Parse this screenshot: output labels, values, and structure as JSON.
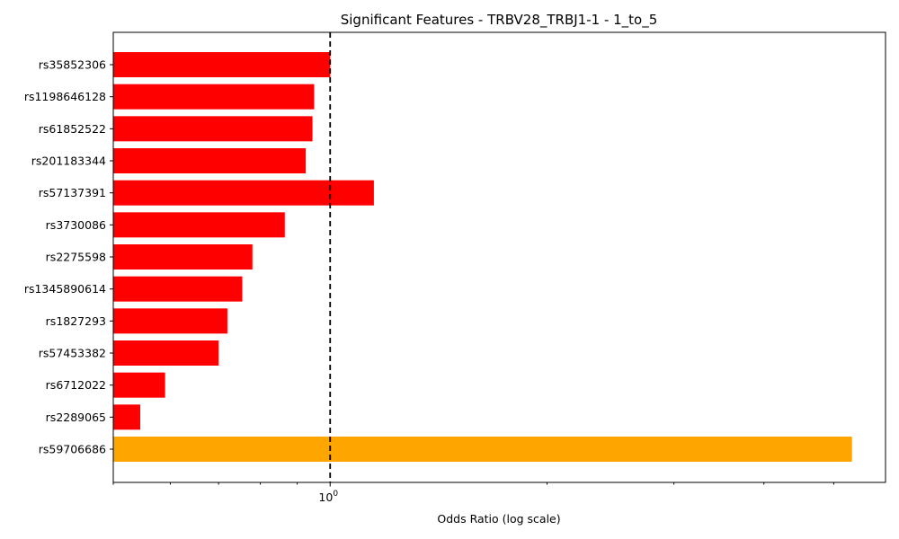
{
  "chart_data": {
    "type": "bar",
    "orientation": "horizontal",
    "title": "Significant Features - TRBV28_TRBJ1-1 - 1_to_5",
    "xlabel": "Odds Ratio (log scale)",
    "ylabel": "",
    "xscale": "log",
    "xlim": [
      0.5,
      5.9
    ],
    "grid": false,
    "reference_line": {
      "x": 1,
      "style": "dashed",
      "color": "#000000"
    },
    "x_tick_labels": [
      {
        "value": 1,
        "base": "10",
        "exponent": "0"
      }
    ],
    "categories": [
      "rs35852306",
      "rs1198646128",
      "rs61852522",
      "rs201183344",
      "rs57137391",
      "rs3730086",
      "rs2275598",
      "rs1345890614",
      "rs1827293",
      "rs57453382",
      "rs6712022",
      "rs2289065",
      "rs59706686"
    ],
    "values": [
      1.0,
      0.95,
      0.945,
      0.925,
      1.15,
      0.865,
      0.78,
      0.755,
      0.72,
      0.7,
      0.59,
      0.545,
      5.3
    ],
    "colors": [
      "#ff0000",
      "#ff0000",
      "#ff0000",
      "#ff0000",
      "#ff0000",
      "#ff0000",
      "#ff0000",
      "#ff0000",
      "#ff0000",
      "#ff0000",
      "#ff0000",
      "#ff0000",
      "#ffa500"
    ]
  }
}
